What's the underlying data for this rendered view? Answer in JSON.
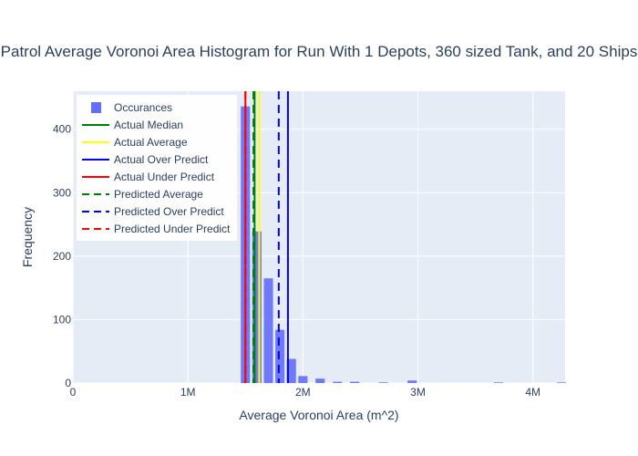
{
  "chart_data": {
    "type": "bar",
    "title": "Patrol Average Voronoi Area Histogram for Run With 1 Depots, 360 sized Tank, and 20 Ships",
    "xlabel": "Average Voronoi Area (m^2)",
    "ylabel": "Frequency",
    "xlim": [
      0,
      4280000
    ],
    "ylim": [
      0,
      460
    ],
    "x_ticks": [
      {
        "value": 0,
        "label": "0"
      },
      {
        "value": 1000000,
        "label": "1M"
      },
      {
        "value": 2000000,
        "label": "2M"
      },
      {
        "value": 3000000,
        "label": "3M"
      },
      {
        "value": 4000000,
        "label": "4M"
      }
    ],
    "y_ticks": [
      {
        "value": 0,
        "label": "0"
      },
      {
        "value": 100,
        "label": "100"
      },
      {
        "value": 200,
        "label": "200"
      },
      {
        "value": 300,
        "label": "300"
      },
      {
        "value": 400,
        "label": "400"
      }
    ],
    "grid": true,
    "legend_position": "top-left",
    "bar_color": "#636efa",
    "bin_width": 100000,
    "histogram": {
      "name": "Occurances",
      "bins": [
        {
          "x": 1500000,
          "count": 436
        },
        {
          "x": 1600000,
          "count": 239
        },
        {
          "x": 1700000,
          "count": 165
        },
        {
          "x": 1800000,
          "count": 84
        },
        {
          "x": 1900000,
          "count": 38
        },
        {
          "x": 2000000,
          "count": 11
        },
        {
          "x": 2150000,
          "count": 7
        },
        {
          "x": 2300000,
          "count": 2
        },
        {
          "x": 2450000,
          "count": 2
        },
        {
          "x": 2700000,
          "count": 1
        },
        {
          "x": 2950000,
          "count": 4
        },
        {
          "x": 3700000,
          "count": 1
        },
        {
          "x": 4250000,
          "count": 1
        }
      ]
    },
    "vertical_lines": [
      {
        "name": "Actual Median",
        "x": 1580000,
        "color": "#008000",
        "dash": "solid"
      },
      {
        "name": "Actual Average",
        "x": 1620000,
        "color": "#ffff00",
        "dash": "solid"
      },
      {
        "name": "Actual Over Predict",
        "x": 1870000,
        "color": "#0000ff",
        "dash": "solid"
      },
      {
        "name": "Actual Under Predict",
        "x": 1500000,
        "color": "#ff0000",
        "dash": "solid"
      },
      {
        "name": "Predicted Average",
        "x": 1570000,
        "color": "#008000",
        "dash": "dash"
      },
      {
        "name": "Predicted Over Predict",
        "x": 1790000,
        "color": "#0000ff",
        "dash": "dash"
      },
      {
        "name": "Predicted Under Predict",
        "x": 1500000,
        "color": "#ff0000",
        "dash": "dash"
      }
    ]
  }
}
